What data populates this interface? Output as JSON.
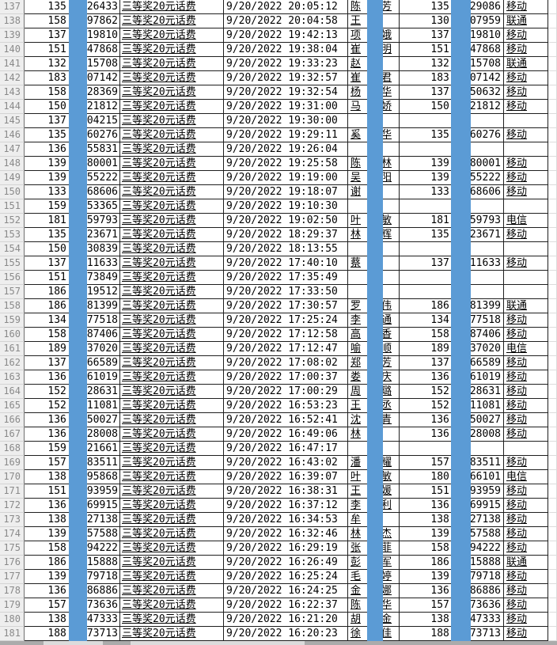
{
  "sheet": {
    "prize_label": "三等奖20元话费",
    "carriers_seen": [
      "移动",
      "联通",
      "电信"
    ],
    "colors": {
      "redaction_blue": "#5b9bd5",
      "grid_dark": "#1f1f1f",
      "row_header_bg": "#eeeeee",
      "row_header_text": "#8a8a8a"
    },
    "rows": [
      {
        "num": "137",
        "phone1_prefix": "135",
        "phone1_suffix": "26433",
        "datetime": "9/20/2022 20:05:12",
        "name_first": "陈",
        "name_last": "芳",
        "phone2_prefix": "135",
        "phone2_suffix": "29086",
        "carrier": "移动"
      },
      {
        "num": "138",
        "phone1_prefix": "158",
        "phone1_suffix": "97862",
        "datetime": "9/20/2022 20:04:58",
        "name_first": "王",
        "name_last": "",
        "phone2_prefix": "130",
        "phone2_suffix": "07959",
        "carrier": "联通"
      },
      {
        "num": "139",
        "phone1_prefix": "137",
        "phone1_suffix": "19810",
        "datetime": "9/20/2022 19:42:13",
        "name_first": "项",
        "name_last": "娥",
        "phone2_prefix": "137",
        "phone2_suffix": "19810",
        "carrier": "移动"
      },
      {
        "num": "140",
        "phone1_prefix": "151",
        "phone1_suffix": "47868",
        "datetime": "9/20/2022 19:38:04",
        "name_first": "崔",
        "name_last": "明",
        "phone2_prefix": "151",
        "phone2_suffix": "47868",
        "carrier": "移动"
      },
      {
        "num": "141",
        "phone1_prefix": "132",
        "phone1_suffix": "15708",
        "datetime": "9/20/2022 19:33:23",
        "name_first": "赵",
        "name_last": "",
        "phone2_prefix": "132",
        "phone2_suffix": "15708",
        "carrier": "联通"
      },
      {
        "num": "142",
        "phone1_prefix": "183",
        "phone1_suffix": "07142",
        "datetime": "9/20/2022 19:32:57",
        "name_first": "崔",
        "name_last": "君",
        "phone2_prefix": "183",
        "phone2_suffix": "07142",
        "carrier": "移动"
      },
      {
        "num": "143",
        "phone1_prefix": "158",
        "phone1_suffix": "28369",
        "datetime": "9/20/2022 19:32:54",
        "name_first": "杨",
        "name_last": "华",
        "phone2_prefix": "137",
        "phone2_suffix": "50632",
        "carrier": "移动"
      },
      {
        "num": "144",
        "phone1_prefix": "150",
        "phone1_suffix": "21812",
        "datetime": "9/20/2022 19:31:00",
        "name_first": "马",
        "name_last": "娇",
        "phone2_prefix": "150",
        "phone2_suffix": "21812",
        "carrier": "移动"
      },
      {
        "num": "145",
        "phone1_prefix": "137",
        "phone1_suffix": "04215",
        "datetime": "9/20/2022 19:30:00",
        "name_first": "",
        "name_last": "",
        "phone2_prefix": "",
        "phone2_suffix": "",
        "carrier": ""
      },
      {
        "num": "146",
        "phone1_prefix": "135",
        "phone1_suffix": "60276",
        "datetime": "9/20/2022 19:29:11",
        "name_first": "奚",
        "name_last": "华",
        "phone2_prefix": "135",
        "phone2_suffix": "60276",
        "carrier": "移动"
      },
      {
        "num": "147",
        "phone1_prefix": "136",
        "phone1_suffix": "55831",
        "datetime": "9/20/2022 19:26:04",
        "name_first": "",
        "name_last": "",
        "phone2_prefix": "",
        "phone2_suffix": "",
        "carrier": ""
      },
      {
        "num": "148",
        "phone1_prefix": "139",
        "phone1_suffix": "80001",
        "datetime": "9/20/2022 19:25:58",
        "name_first": "陈",
        "name_last": "林",
        "phone2_prefix": "139",
        "phone2_suffix": "80001",
        "carrier": "移动"
      },
      {
        "num": "149",
        "phone1_prefix": "139",
        "phone1_suffix": "55222",
        "datetime": "9/20/2022 19:19:00",
        "name_first": "吴",
        "name_last": "阳",
        "phone2_prefix": "139",
        "phone2_suffix": "55222",
        "carrier": "移动"
      },
      {
        "num": "150",
        "phone1_prefix": "133",
        "phone1_suffix": "68606",
        "datetime": "9/20/2022 19:18:07",
        "name_first": "谢",
        "name_last": "",
        "phone2_prefix": "133",
        "phone2_suffix": "68606",
        "carrier": "移动"
      },
      {
        "num": "151",
        "phone1_prefix": "159",
        "phone1_suffix": "53365",
        "datetime": "9/20/2022 19:10:30",
        "name_first": "",
        "name_last": "",
        "phone2_prefix": "",
        "phone2_suffix": "",
        "carrier": ""
      },
      {
        "num": "152",
        "phone1_prefix": "181",
        "phone1_suffix": "59793",
        "datetime": "9/20/2022 19:02:50",
        "name_first": "叶",
        "name_last": "敏",
        "phone2_prefix": "181",
        "phone2_suffix": "59793",
        "carrier": "电信"
      },
      {
        "num": "153",
        "phone1_prefix": "135",
        "phone1_suffix": "23671",
        "datetime": "9/20/2022 18:29:37",
        "name_first": "林",
        "name_last": "辉",
        "phone2_prefix": "135",
        "phone2_suffix": "23671",
        "carrier": "移动"
      },
      {
        "num": "154",
        "phone1_prefix": "150",
        "phone1_suffix": "30839",
        "datetime": "9/20/2022 18:13:55",
        "name_first": "",
        "name_last": "",
        "phone2_prefix": "",
        "phone2_suffix": "",
        "carrier": ""
      },
      {
        "num": "155",
        "phone1_prefix": "137",
        "phone1_suffix": "11633",
        "datetime": "9/20/2022 17:40:10",
        "name_first": "蔡",
        "name_last": "",
        "phone2_prefix": "137",
        "phone2_suffix": "11633",
        "carrier": "移动"
      },
      {
        "num": "156",
        "phone1_prefix": "151",
        "phone1_suffix": "73849",
        "datetime": "9/20/2022 17:35:49",
        "name_first": "",
        "name_last": "",
        "phone2_prefix": "",
        "phone2_suffix": "",
        "carrier": ""
      },
      {
        "num": "157",
        "phone1_prefix": "186",
        "phone1_suffix": "19512",
        "datetime": "9/20/2022 17:33:50",
        "name_first": "",
        "name_last": "",
        "phone2_prefix": "",
        "phone2_suffix": "",
        "carrier": ""
      },
      {
        "num": "158",
        "phone1_prefix": "186",
        "phone1_suffix": "81399",
        "datetime": "9/20/2022 17:30:57",
        "name_first": "罗",
        "name_last": "伟",
        "phone2_prefix": "186",
        "phone2_suffix": "81399",
        "carrier": "联通"
      },
      {
        "num": "159",
        "phone1_prefix": "134",
        "phone1_suffix": "77518",
        "datetime": "9/20/2022 17:25:24",
        "name_first": "李",
        "name_last": "通",
        "phone2_prefix": "134",
        "phone2_suffix": "77518",
        "carrier": "移动"
      },
      {
        "num": "160",
        "phone1_prefix": "158",
        "phone1_suffix": "87406",
        "datetime": "9/20/2022 17:12:58",
        "name_first": "高",
        "name_last": "香",
        "phone2_prefix": "158",
        "phone2_suffix": "87406",
        "carrier": "移动"
      },
      {
        "num": "161",
        "phone1_prefix": "189",
        "phone1_suffix": "37020",
        "datetime": "9/20/2022 17:12:47",
        "name_first": "喻",
        "name_last": "顺",
        "phone2_prefix": "189",
        "phone2_suffix": "37020",
        "carrier": "电信"
      },
      {
        "num": "162",
        "phone1_prefix": "137",
        "phone1_suffix": "66589",
        "datetime": "9/20/2022 17:08:02",
        "name_first": "郑",
        "name_last": "芳",
        "phone2_prefix": "137",
        "phone2_suffix": "66589",
        "carrier": "移动"
      },
      {
        "num": "163",
        "phone1_prefix": "136",
        "phone1_suffix": "61019",
        "datetime": "9/20/2022 17:00:37",
        "name_first": "娄",
        "name_last": "庆",
        "phone2_prefix": "136",
        "phone2_suffix": "61019",
        "carrier": "移动"
      },
      {
        "num": "164",
        "phone1_prefix": "152",
        "phone1_suffix": "28631",
        "datetime": "9/20/2022 17:00:29",
        "name_first": "周",
        "name_last": "璐",
        "phone2_prefix": "152",
        "phone2_suffix": "28631",
        "carrier": "移动"
      },
      {
        "num": "165",
        "phone1_prefix": "152",
        "phone1_suffix": "11081",
        "datetime": "9/20/2022 16:53:23",
        "name_first": "王",
        "name_last": "丞",
        "phone2_prefix": "152",
        "phone2_suffix": "11081",
        "carrier": "移动"
      },
      {
        "num": "166",
        "phone1_prefix": "136",
        "phone1_suffix": "50027",
        "datetime": "9/20/2022 16:52:41",
        "name_first": "沈",
        "name_last": "青",
        "phone2_prefix": "136",
        "phone2_suffix": "50027",
        "carrier": "移动"
      },
      {
        "num": "167",
        "phone1_prefix": "136",
        "phone1_suffix": "28008",
        "datetime": "9/20/2022 16:49:06",
        "name_first": "林",
        "name_last": "",
        "phone2_prefix": "136",
        "phone2_suffix": "28008",
        "carrier": "移动"
      },
      {
        "num": "168",
        "phone1_prefix": "159",
        "phone1_suffix": "21661",
        "datetime": "9/20/2022 16:47:17",
        "name_first": "",
        "name_last": "",
        "phone2_prefix": "",
        "phone2_suffix": "",
        "carrier": ""
      },
      {
        "num": "169",
        "phone1_prefix": "157",
        "phone1_suffix": "83511",
        "datetime": "9/20/2022 16:43:02",
        "name_first": "潘",
        "name_last": "耀",
        "phone2_prefix": "157",
        "phone2_suffix": "83511",
        "carrier": "移动"
      },
      {
        "num": "170",
        "phone1_prefix": "138",
        "phone1_suffix": "95868",
        "datetime": "9/20/2022 16:39:07",
        "name_first": "叶",
        "name_last": "敏",
        "phone2_prefix": "180",
        "phone2_suffix": "66101",
        "carrier": "电信"
      },
      {
        "num": "171",
        "phone1_prefix": "151",
        "phone1_suffix": "93959",
        "datetime": "9/20/2022 16:38:31",
        "name_first": "王",
        "name_last": "媛",
        "phone2_prefix": "151",
        "phone2_suffix": "93959",
        "carrier": "移动"
      },
      {
        "num": "172",
        "phone1_prefix": "136",
        "phone1_suffix": "69915",
        "datetime": "9/20/2022 16:37:12",
        "name_first": "李",
        "name_last": "利",
        "phone2_prefix": "136",
        "phone2_suffix": "69915",
        "carrier": "移动"
      },
      {
        "num": "173",
        "phone1_prefix": "138",
        "phone1_suffix": "27138",
        "datetime": "9/20/2022 16:34:53",
        "name_first": "牟",
        "name_last": "",
        "phone2_prefix": "138",
        "phone2_suffix": "27138",
        "carrier": "移动"
      },
      {
        "num": "174",
        "phone1_prefix": "139",
        "phone1_suffix": "57588",
        "datetime": "9/20/2022 16:32:46",
        "name_first": "林",
        "name_last": "杰",
        "phone2_prefix": "139",
        "phone2_suffix": "57588",
        "carrier": "移动"
      },
      {
        "num": "175",
        "phone1_prefix": "158",
        "phone1_suffix": "94222",
        "datetime": "9/20/2022 16:29:19",
        "name_first": "张",
        "name_last": "菲",
        "phone2_prefix": "158",
        "phone2_suffix": "94222",
        "carrier": "移动"
      },
      {
        "num": "176",
        "phone1_prefix": "186",
        "phone1_suffix": "15888",
        "datetime": "9/20/2022 16:26:49",
        "name_first": "彭",
        "name_last": "军",
        "phone2_prefix": "186",
        "phone2_suffix": "15888",
        "carrier": "联通"
      },
      {
        "num": "177",
        "phone1_prefix": "139",
        "phone1_suffix": "79718",
        "datetime": "9/20/2022 16:25:24",
        "name_first": "毛",
        "name_last": "婷",
        "phone2_prefix": "139",
        "phone2_suffix": "79718",
        "carrier": "移动"
      },
      {
        "num": "178",
        "phone1_prefix": "136",
        "phone1_suffix": "86886",
        "datetime": "9/20/2022 16:24:25",
        "name_first": "金",
        "name_last": "娜",
        "phone2_prefix": "136",
        "phone2_suffix": "86886",
        "carrier": "移动"
      },
      {
        "num": "179",
        "phone1_prefix": "157",
        "phone1_suffix": "73636",
        "datetime": "9/20/2022 16:22:37",
        "name_first": "陈",
        "name_last": "华",
        "phone2_prefix": "157",
        "phone2_suffix": "73636",
        "carrier": "移动"
      },
      {
        "num": "180",
        "phone1_prefix": "138",
        "phone1_suffix": "47333",
        "datetime": "9/20/2022 16:21:20",
        "name_first": "胡",
        "name_last": "金",
        "phone2_prefix": "138",
        "phone2_suffix": "47333",
        "carrier": "移动"
      },
      {
        "num": "181",
        "phone1_prefix": "188",
        "phone1_suffix": "73713",
        "datetime": "9/20/2022 16:20:23",
        "name_first": "徐",
        "name_last": "佳",
        "phone2_prefix": "188",
        "phone2_suffix": "73713",
        "carrier": "移动"
      }
    ]
  }
}
